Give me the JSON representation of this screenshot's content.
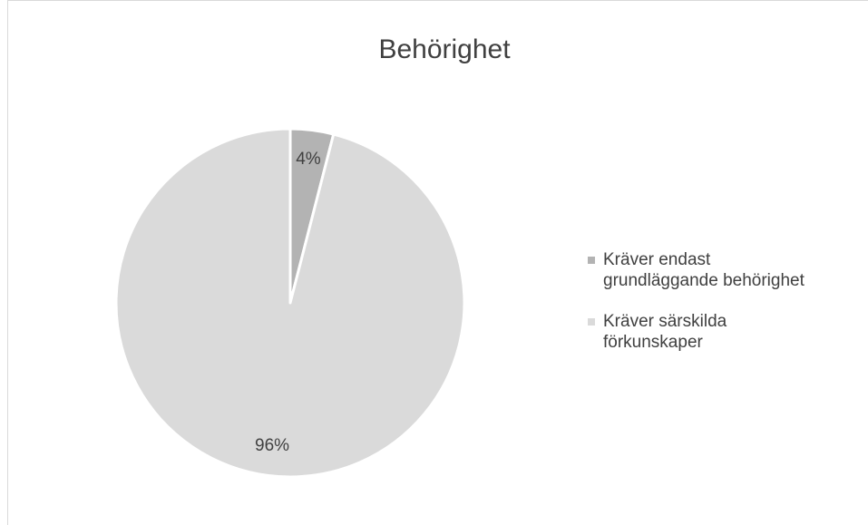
{
  "chart_data": {
    "type": "pie",
    "title": "Behörighet",
    "categories": [
      "Kräver endast grundläggande behörighet",
      "Kräver särskilda förkunskaper"
    ],
    "values": [
      4,
      96
    ],
    "value_labels": [
      "4%",
      "96%"
    ],
    "colors": [
      "#b3b3b3",
      "#dadada"
    ],
    "legend": "right"
  }
}
